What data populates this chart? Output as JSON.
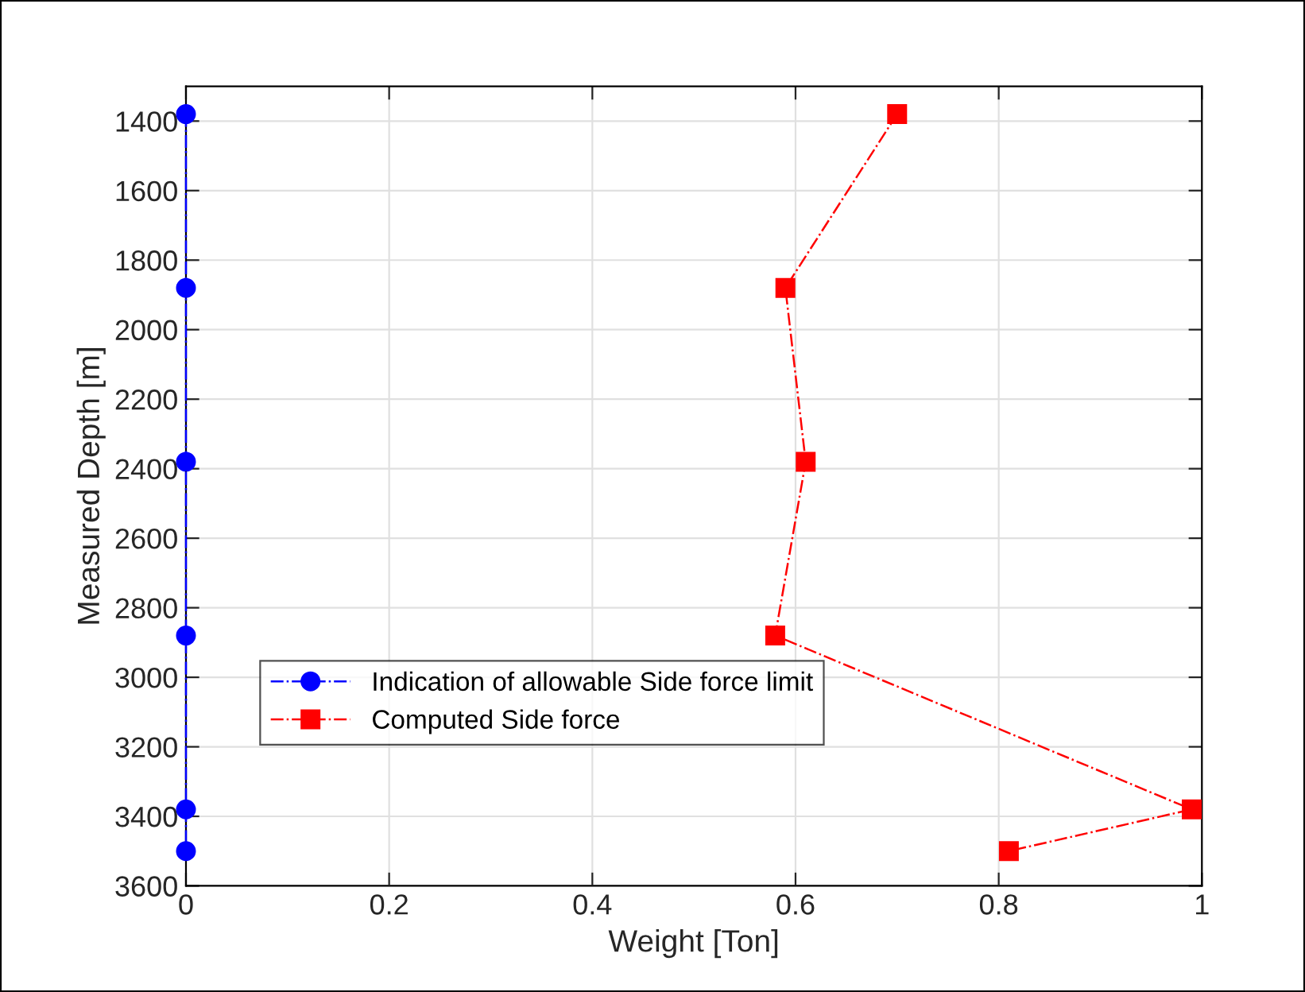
{
  "chart_data": {
    "type": "line",
    "xlabel": "Weight [Ton]",
    "ylabel": "Measured Depth [m]",
    "series": [
      {
        "name": "Indication of allowable Side force limit",
        "color": "#0000ff",
        "x": [
          0,
          0,
          0,
          0,
          0,
          0
        ],
        "values": [
          1380,
          1880,
          2380,
          2880,
          3380,
          3500
        ],
        "marker": "circle",
        "line_style": "dashdot"
      },
      {
        "name": "Computed Side force",
        "color": "#ff0000",
        "x": [
          0.7,
          0.59,
          0.61,
          0.58,
          0.99,
          0.81
        ],
        "values": [
          1380,
          1880,
          2380,
          2880,
          3380,
          3500
        ],
        "marker": "square",
        "line_style": "dashdot"
      }
    ],
    "xlim": [
      0,
      1
    ],
    "xticks": [
      0,
      0.2,
      0.4,
      0.6,
      0.8,
      1
    ],
    "ylim": [
      3600,
      1300
    ],
    "yticks": [
      1400,
      1600,
      1800,
      2000,
      2200,
      2400,
      2600,
      2800,
      3000,
      3200,
      3400,
      3600
    ],
    "grid": true,
    "legend": "lower left"
  }
}
